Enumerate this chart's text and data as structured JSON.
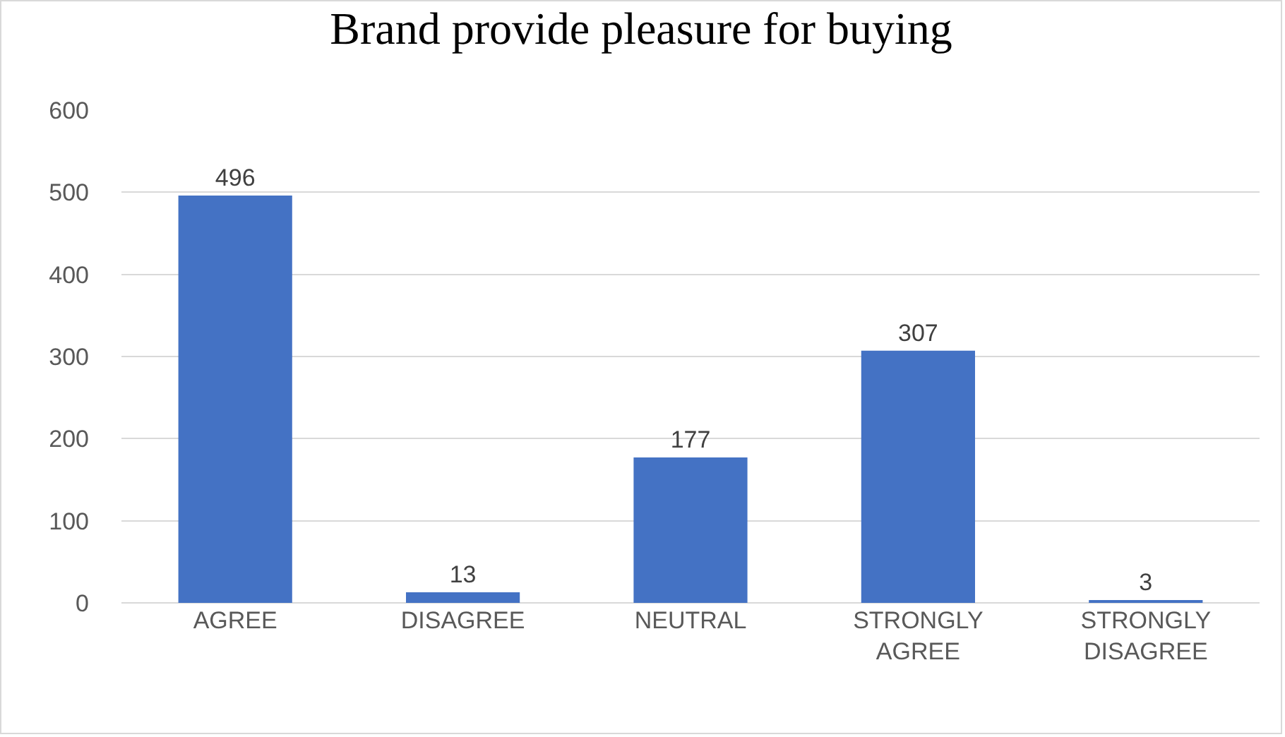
{
  "chart_data": {
    "type": "bar",
    "title": "Brand provide pleasure for buying",
    "categories": [
      "AGREE",
      "DISAGREE",
      "NEUTRAL",
      "STRONGLY AGREE",
      "STRONGLY DISAGREE"
    ],
    "values": [
      496,
      13,
      177,
      307,
      3
    ],
    "color": "#4472c4",
    "ylim": [
      0,
      600
    ],
    "yticks": [
      0,
      100,
      200,
      300,
      400,
      500,
      600
    ],
    "grid": "y",
    "data_labels": true,
    "legend": false
  }
}
